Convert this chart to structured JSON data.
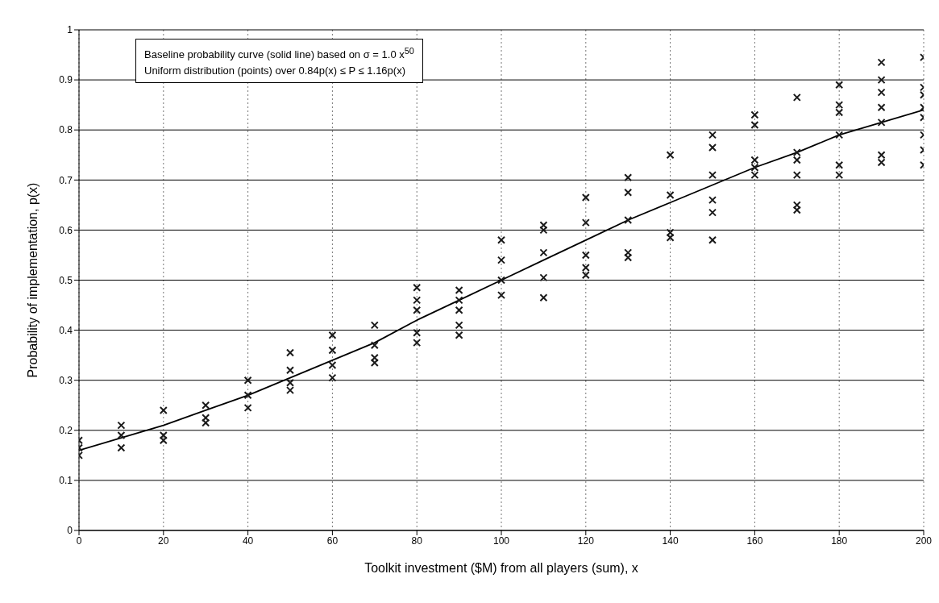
{
  "chart_data": {
    "type": "scatter",
    "xlabel": "Toolkit investment ($M) from all players (sum), x",
    "ylabel": "Probability of implementation, p(x)",
    "annotations": [
      "Baseline probability curve (solid line) based on σ = 1.0 x$^{50}$",
      "Uniform distribution (points) over 0.84p(x) ≤ P ≤ 1.16p(x)"
    ],
    "xlim": [
      0,
      200
    ],
    "xticks": [
      0,
      20,
      40,
      60,
      80,
      100,
      120,
      140,
      160,
      180,
      200
    ],
    "ylim": [
      0,
      1
    ],
    "yticks": [
      0,
      0.1,
      0.2,
      0.3,
      0.4,
      0.5,
      0.6,
      0.7,
      0.8,
      0.9,
      1
    ],
    "grid": true,
    "legend": false,
    "series": [
      {
        "type": "line",
        "color": "#000000",
        "marker": "none",
        "line_style": "solid",
        "x": [
          0,
          10,
          20,
          30,
          40,
          50,
          60,
          70,
          80,
          90,
          100,
          110,
          120,
          130,
          140,
          150,
          160,
          170,
          180,
          190,
          200
        ],
        "values": [
          0.16,
          0.185,
          0.21,
          0.24,
          0.27,
          0.305,
          0.34,
          0.375,
          0.42,
          0.46,
          0.5,
          0.54,
          0.58,
          0.62,
          0.655,
          0.69,
          0.725,
          0.755,
          0.79,
          0.815,
          0.84
        ]
      },
      {
        "color": "#1a1a1a",
        "marker": "cross",
        "x": [
          0,
          0,
          0,
          10,
          10,
          10,
          20,
          20,
          20,
          30,
          30,
          30,
          40,
          40,
          40,
          50,
          50,
          50,
          50,
          60,
          60,
          60,
          60,
          70,
          70,
          70,
          70,
          80,
          80,
          80,
          80,
          80,
          90,
          90,
          90,
          90,
          90,
          100,
          100,
          100,
          100,
          110,
          110,
          110,
          110,
          110,
          120,
          120,
          120,
          120,
          120,
          130,
          130,
          130,
          130,
          130,
          140,
          140,
          140,
          140,
          150,
          150,
          150,
          150,
          150,
          150,
          160,
          160,
          160,
          160,
          160,
          170,
          170,
          170,
          170,
          170,
          170,
          180,
          180,
          180,
          180,
          180,
          180,
          190,
          190,
          190,
          190,
          190,
          190,
          190,
          200,
          200,
          200,
          200,
          200,
          200,
          200,
          200
        ],
        "values": [
          0.18,
          0.165,
          0.15,
          0.21,
          0.19,
          0.165,
          0.24,
          0.19,
          0.18,
          0.25,
          0.225,
          0.215,
          0.3,
          0.27,
          0.245,
          0.355,
          0.32,
          0.295,
          0.28,
          0.39,
          0.36,
          0.33,
          0.305,
          0.41,
          0.37,
          0.345,
          0.335,
          0.485,
          0.46,
          0.44,
          0.395,
          0.375,
          0.48,
          0.46,
          0.44,
          0.41,
          0.39,
          0.58,
          0.54,
          0.5,
          0.47,
          0.61,
          0.6,
          0.555,
          0.505,
          0.465,
          0.665,
          0.615,
          0.55,
          0.525,
          0.51,
          0.705,
          0.675,
          0.62,
          0.555,
          0.545,
          0.75,
          0.67,
          0.595,
          0.585,
          0.79,
          0.765,
          0.71,
          0.66,
          0.635,
          0.58,
          0.83,
          0.81,
          0.74,
          0.725,
          0.71,
          0.865,
          0.755,
          0.74,
          0.71,
          0.65,
          0.64,
          0.89,
          0.85,
          0.835,
          0.79,
          0.73,
          0.71,
          0.935,
          0.9,
          0.875,
          0.845,
          0.815,
          0.75,
          0.735,
          0.945,
          0.885,
          0.87,
          0.845,
          0.825,
          0.79,
          0.76,
          0.73
        ]
      }
    ]
  }
}
